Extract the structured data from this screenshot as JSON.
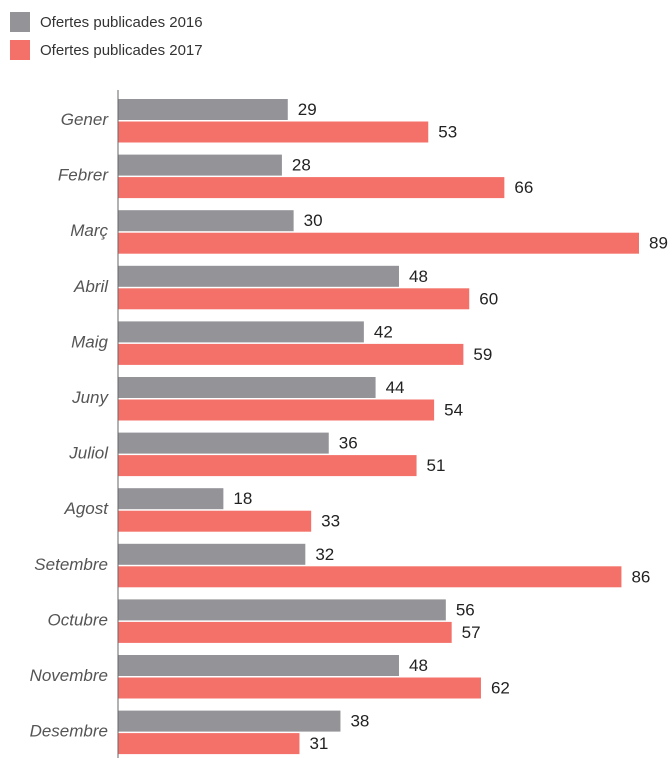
{
  "chart_data": {
    "type": "bar",
    "orientation": "horizontal",
    "title": "",
    "xlabel": "",
    "ylabel": "",
    "categories": [
      "Gener",
      "Febrer",
      "Març",
      "Abril",
      "Maig",
      "Juny",
      "Juliol",
      "Agost",
      "Setembre",
      "Octubre",
      "Novembre",
      "Desembre"
    ],
    "series": [
      {
        "name": "Ofertes publicades 2016",
        "color": "#939398",
        "values": [
          29,
          28,
          30,
          48,
          42,
          44,
          36,
          18,
          32,
          56,
          48,
          38
        ]
      },
      {
        "name": "Ofertes publicades 2017",
        "color": "#f4716a",
        "values": [
          53,
          66,
          89,
          60,
          59,
          54,
          51,
          33,
          86,
          57,
          62,
          31
        ]
      }
    ],
    "xlim": [
      0,
      89
    ],
    "legend_position": "top-left",
    "grid": false,
    "data_labels": true
  }
}
